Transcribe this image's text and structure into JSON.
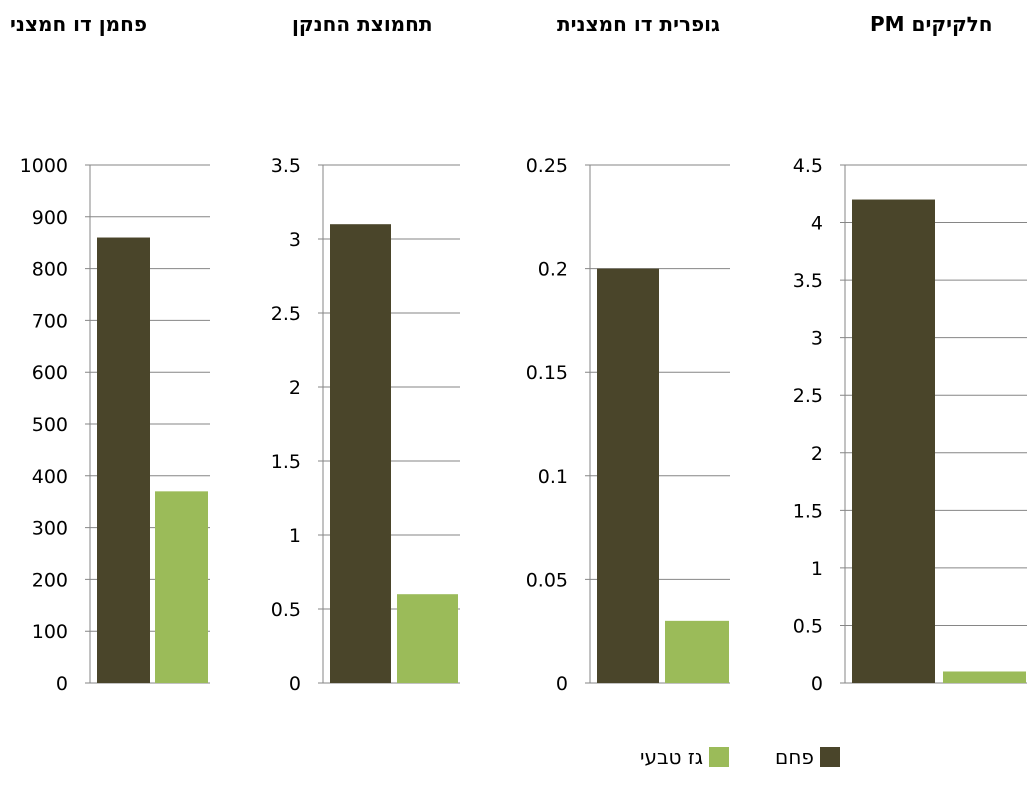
{
  "chart_data": [
    {
      "type": "bar",
      "title": "פחמן דו חמצני",
      "categories": [
        "פחם",
        "גז טבעי"
      ],
      "values": [
        860,
        370
      ],
      "ylim": [
        0,
        1000
      ],
      "yticks": [
        "0",
        "100",
        "200",
        "300",
        "400",
        "500",
        "600",
        "700",
        "800",
        "900",
        "1000"
      ],
      "grid": true
    },
    {
      "type": "bar",
      "title": "תחמוצת החנקן",
      "categories": [
        "פחם",
        "גז טבעי"
      ],
      "values": [
        3.1,
        0.6
      ],
      "ylim": [
        0,
        3.5
      ],
      "yticks": [
        "0",
        "0.5",
        "1",
        "1.5",
        "2",
        "2.5",
        "3",
        "3.5"
      ],
      "grid": true
    },
    {
      "type": "bar",
      "title": "גופרית דו חמצנית",
      "categories": [
        "פחם",
        "גז טבעי"
      ],
      "values": [
        0.2,
        0.03
      ],
      "ylim": [
        0,
        0.25
      ],
      "yticks": [
        "0",
        "0.05",
        "0.1",
        "0.15",
        "0.2",
        "0.25"
      ],
      "grid": true
    },
    {
      "type": "bar",
      "title": "חלקיקים PM",
      "categories": [
        "פחם",
        "גז טבעי"
      ],
      "values": [
        4.2,
        0.1
      ],
      "ylim": [
        0,
        4.5
      ],
      "yticks": [
        "0",
        "0.5",
        "1",
        "1.5",
        "2",
        "2.5",
        "3",
        "3.5",
        "4",
        "4.5"
      ],
      "grid": true
    }
  ],
  "legend": {
    "position": "bottom-right",
    "items": [
      {
        "label": "פחם",
        "color": "#4a452a"
      },
      {
        "label": "גז טבעי",
        "color": "#9bbb59"
      }
    ]
  },
  "colors": {
    "coal": "#4a452a",
    "gas": "#9bbb59",
    "grid": "#868686"
  }
}
